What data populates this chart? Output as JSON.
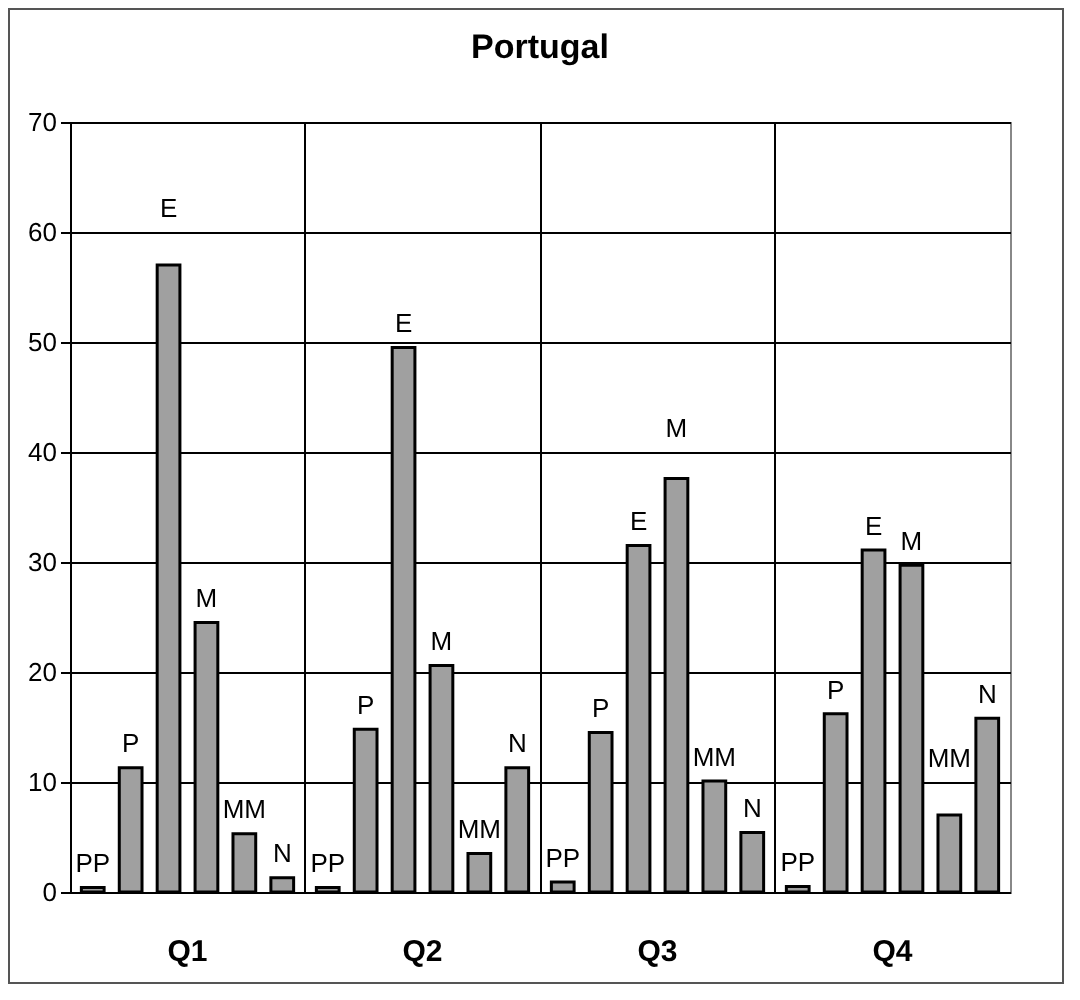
{
  "chart_data": {
    "type": "bar",
    "title": "Portugal",
    "categories": [
      "Q1",
      "Q2",
      "Q3",
      "Q4"
    ],
    "series": [
      {
        "name": "PP",
        "color": "#a0a0a0",
        "values": [
          0.4,
          0.4,
          0.9,
          0.5
        ]
      },
      {
        "name": "P",
        "color": "#a0a0a0",
        "values": [
          11.3,
          14.8,
          14.5,
          16.2
        ]
      },
      {
        "name": "E",
        "color": "#a0a0a0",
        "values": [
          57,
          49.5,
          31.5,
          31.1
        ]
      },
      {
        "name": "M",
        "color": "#a0a0a0",
        "values": [
          24.5,
          20.6,
          37.6,
          29.7
        ]
      },
      {
        "name": "MM",
        "color": "#a0a0a0",
        "values": [
          5.3,
          3.5,
          10.1,
          7
        ]
      },
      {
        "name": "N",
        "color": "#a0a0a0",
        "values": [
          1.3,
          11.3,
          5.4,
          15.8
        ]
      }
    ],
    "ylim": [
      0,
      70
    ],
    "yticks": [
      0,
      10,
      20,
      30,
      40,
      50,
      60,
      70
    ],
    "grid": true,
    "legend": false
  }
}
